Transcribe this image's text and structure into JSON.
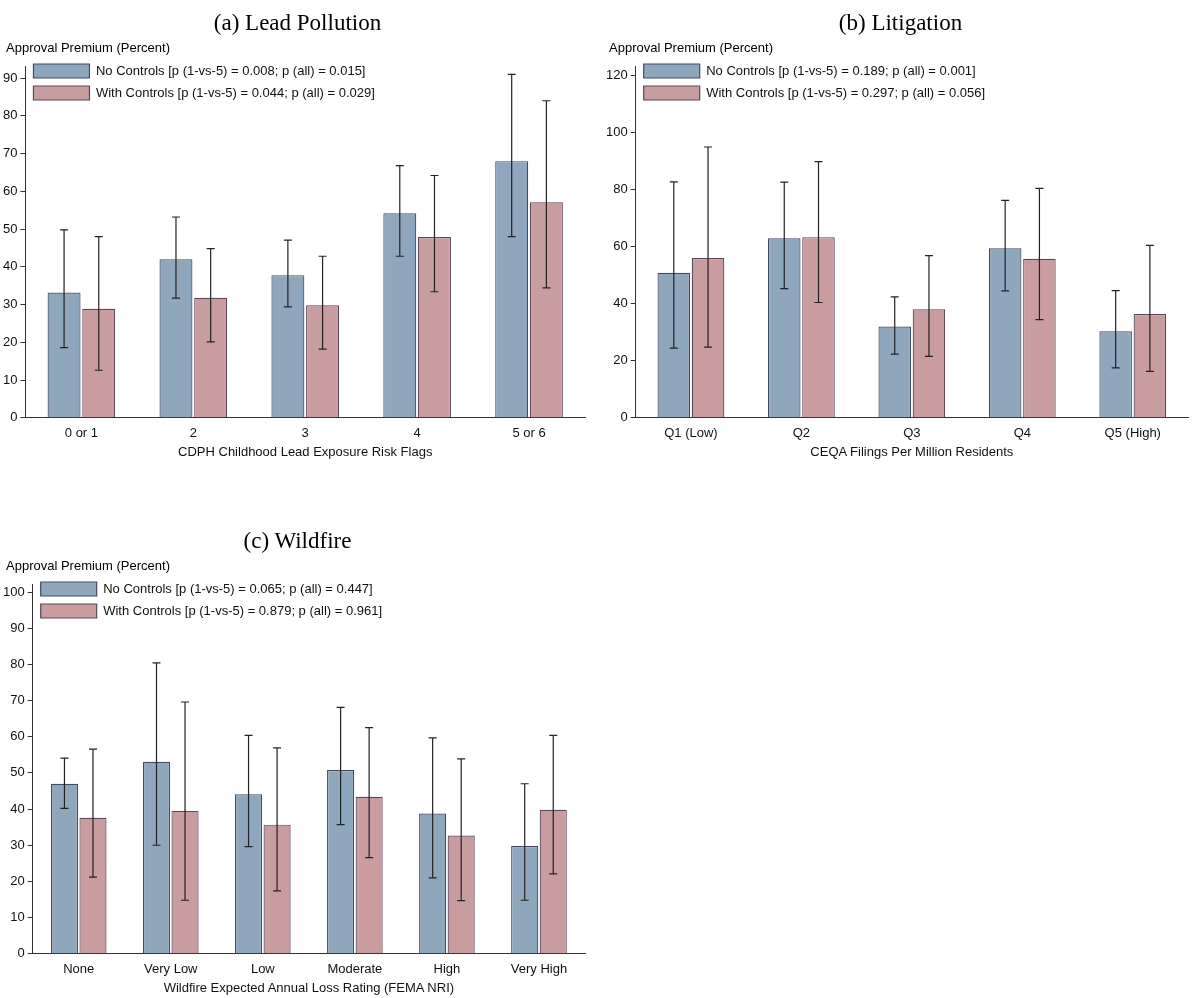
{
  "chart_data": [
    {
      "type": "bar",
      "title": "(a) Lead Pollution",
      "xlabel": "CDPH Childhood Lead Exposure Risk Flags",
      "ylabel": "Approval Premium (Percent)",
      "categories": [
        "0 or 1",
        "2",
        "3",
        "4",
        "5 or 6"
      ],
      "ylim": [
        0,
        93
      ],
      "yticks": [
        0,
        10,
        20,
        30,
        40,
        50,
        60,
        70,
        80,
        90
      ],
      "grid": false,
      "legend": "top left",
      "series": [
        {
          "name": "No Controls [p (1-vs-5) = 0.008; p (all) = 0.015]",
          "color": "#8fa7bd",
          "values": [
            33.2,
            42,
            37.8,
            54.2,
            68
          ],
          "errors": [
            [
              18.6,
              49.8
            ],
            [
              31.7,
              53.2
            ],
            [
              29.4,
              47.1
            ],
            [
              42.8,
              66.8
            ],
            [
              48,
              91
            ]
          ]
        },
        {
          "name": "With Controls [p (1-vs-5) = 0.044; p (all) = 0.029]",
          "color": "#c99ca0",
          "values": [
            28.9,
            31.8,
            29.8,
            47.9,
            57.1
          ],
          "errors": [
            [
              12.6,
              48
            ],
            [
              20.1,
              44.8
            ],
            [
              18.2,
              42.8
            ],
            [
              33.4,
              64.2
            ],
            [
              34.4,
              84
            ]
          ]
        }
      ]
    },
    {
      "type": "bar",
      "title": "(b) Litigation",
      "xlabel": "CEQA Filings Per Million Residents",
      "ylabel": "Approval Premium (Percent)",
      "categories": [
        "Q1 (Low)",
        "Q2",
        "Q3",
        "Q4",
        "Q5 (High)"
      ],
      "ylim": [
        0,
        123
      ],
      "yticks": [
        0,
        20,
        40,
        60,
        80,
        100,
        120
      ],
      "grid": false,
      "legend": "top left",
      "series": [
        {
          "name": "No Controls [p (1-vs-5) = 0.189; p (all) = 0.001]",
          "color": "#8fa7bd",
          "values": [
            50.8,
            62.9,
            32,
            59.4,
            30.3
          ],
          "errors": [
            [
              24.4,
              82.7
            ],
            [
              45.3,
              82.6
            ],
            [
              22.3,
              42.4
            ],
            [
              44.5,
              76.2
            ],
            [
              17.5,
              44.6
            ]
          ]
        },
        {
          "name": "With Controls [p (1-vs-5) = 0.297; p (all) = 0.056]",
          "color": "#c99ca0",
          "values": [
            56,
            63.3,
            38,
            55.7,
            36.4
          ],
          "errors": [
            [
              24.8,
              94.9
            ],
            [
              40.4,
              89.8
            ],
            [
              21.5,
              56.8
            ],
            [
              34.4,
              80.4
            ],
            [
              16.3,
              60.4
            ]
          ]
        }
      ]
    },
    {
      "type": "bar",
      "title": "(c) Wildfire",
      "xlabel": "Wildfire Expected Annual Loss Rating (FEMA NRI)",
      "ylabel": "Approval Premium (Percent)",
      "categories": [
        "None",
        "Very Low",
        "Low",
        "Moderate",
        "High",
        "Very High"
      ],
      "ylim": [
        0,
        102
      ],
      "yticks": [
        0,
        10,
        20,
        30,
        40,
        50,
        60,
        70,
        80,
        90,
        100
      ],
      "grid": false,
      "legend": "top left",
      "series": [
        {
          "name": "No Controls [p (1-vs-5) = 0.065; p (all) = 0.447]",
          "color": "#8fa7bd",
          "values": [
            47,
            53.1,
            44.1,
            50.8,
            38.8,
            29.8
          ],
          "errors": [
            [
              40.2,
              54.1
            ],
            [
              30,
              80.4
            ],
            [
              29.6,
              60.4
            ],
            [
              35.7,
              68.1
            ],
            [
              21,
              59.7
            ],
            [
              14.8,
              47
            ]
          ]
        },
        {
          "name": "With Controls [p (1-vs-5) = 0.879; p (all) = 0.961]",
          "color": "#c99ca0",
          "values": [
            37.6,
            39.5,
            35.7,
            43.4,
            32.7,
            39.8
          ],
          "errors": [
            [
              21.2,
              56.6
            ],
            [
              14.8,
              69.6
            ],
            [
              17.4,
              56.9
            ],
            [
              26.6,
              62.5
            ],
            [
              14.7,
              53.9
            ],
            [
              22.1,
              60.4
            ]
          ]
        }
      ]
    }
  ]
}
